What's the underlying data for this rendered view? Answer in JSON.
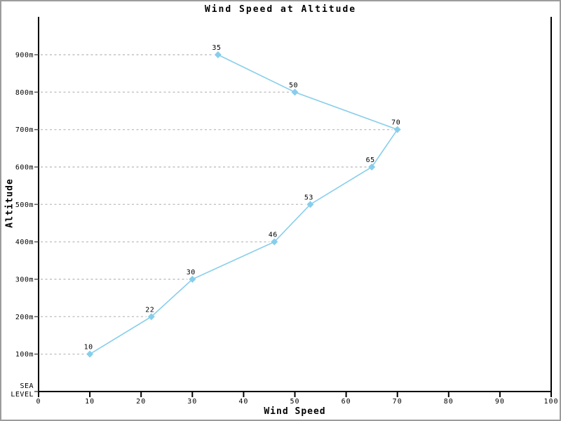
{
  "window": {
    "background": "#ffffff",
    "border_color": "#9c9c9c"
  },
  "chart_data": {
    "type": "line",
    "title": "Wind Speed at Altitude",
    "xlabel": "Wind Speed",
    "ylabel": "Altitude",
    "orientation": "horizontal-categories-on-y",
    "categories": [
      "100m",
      "200m",
      "300m",
      "400m",
      "500m",
      "600m",
      "700m",
      "800m",
      "900m"
    ],
    "values": [
      10,
      22,
      30,
      46,
      53,
      65,
      70,
      50,
      35
    ],
    "point_labels": [
      "10",
      "22",
      "30",
      "46",
      "53",
      "65",
      "70",
      "50",
      "35"
    ],
    "baseline_label": "SEA LEVEL",
    "baseline_lines": [
      "SEA",
      "LEVEL"
    ],
    "x_ticks": [
      0,
      10,
      20,
      30,
      40,
      50,
      60,
      70,
      80,
      90,
      100
    ],
    "xlim": [
      0,
      100
    ],
    "grid": "dashed-horizontal-from-axis-to-point",
    "legend": "none",
    "colors": {
      "line": "#87CEEB",
      "marker": "#87CEEB",
      "grid": "#c2c2c2",
      "axis": "#000000",
      "tick": "#555555",
      "text": "#000000"
    }
  }
}
